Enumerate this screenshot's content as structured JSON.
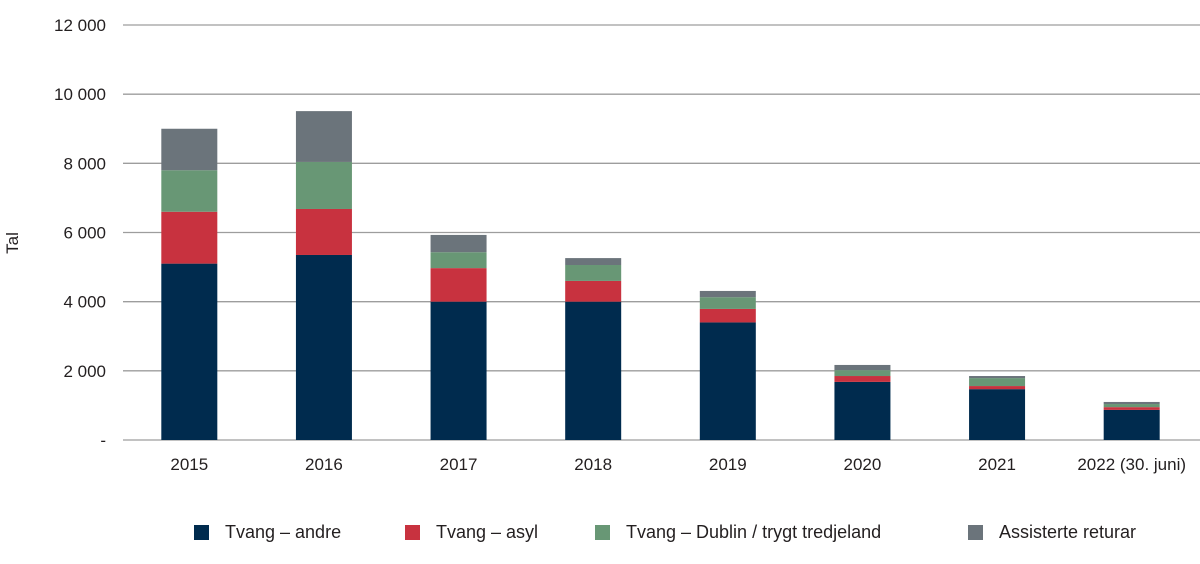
{
  "chart_data": {
    "type": "bar",
    "stacked": true,
    "title": "",
    "xlabel": "",
    "ylabel": "Tal",
    "ylim": [
      0,
      12000
    ],
    "yticks": [
      0,
      2000,
      4000,
      6000,
      8000,
      10000,
      12000
    ],
    "ytick_labels": [
      "-",
      "2 000",
      "4 000",
      "6 000",
      "8 000",
      "10 000",
      "12 000"
    ],
    "grid": true,
    "legend_position": "bottom",
    "categories": [
      "2015",
      "2016",
      "2017",
      "2018",
      "2019",
      "2020",
      "2021",
      "2022 (30. juni)"
    ],
    "series": [
      {
        "name": "Tvang – andre",
        "color": "#002b4e",
        "values": [
          5100,
          5350,
          4000,
          4000,
          3400,
          1680,
          1470,
          870
        ]
      },
      {
        "name": "Tvang – asyl",
        "color": "#c8323f",
        "values": [
          1500,
          1330,
          970,
          600,
          390,
          170,
          90,
          80
        ]
      },
      {
        "name": "Tvang – Dublin / trygt tredjeland",
        "color": "#689775",
        "values": [
          1200,
          1360,
          460,
          460,
          340,
          170,
          230,
          90
        ]
      },
      {
        "name": "Assisterte returar",
        "color": "#6b747b",
        "values": [
          1200,
          1470,
          500,
          200,
          180,
          150,
          60,
          60
        ]
      }
    ]
  }
}
